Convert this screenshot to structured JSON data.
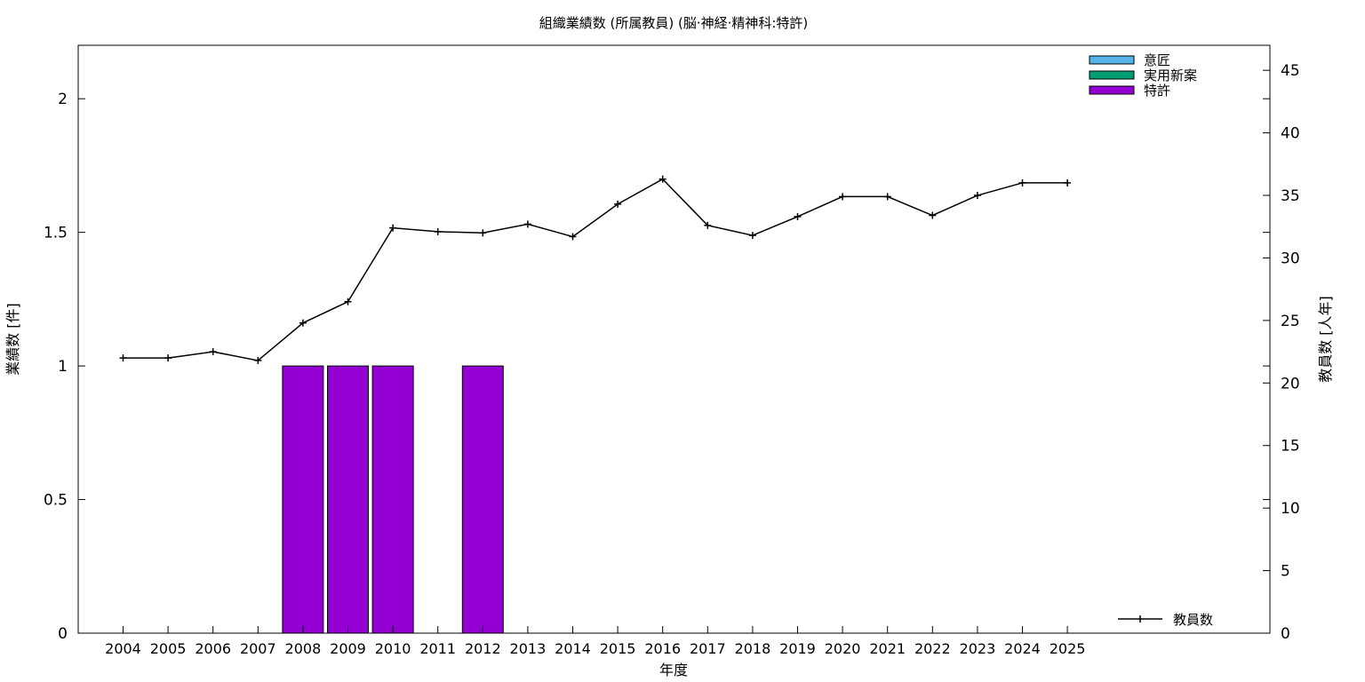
{
  "chart_data": {
    "type": "bar",
    "title": "組織業績数 (所属教員) (脳·神経·精神科:特許)",
    "xlabel": "年度",
    "ylabel": "業績数 [件]",
    "y2label": "教員数 [人年]",
    "categories": [
      "2004",
      "2005",
      "2006",
      "2007",
      "2008",
      "2009",
      "2010",
      "2011",
      "2012",
      "2013",
      "2014",
      "2015",
      "2016",
      "2017",
      "2018",
      "2019",
      "2020",
      "2021",
      "2022",
      "2023",
      "2024",
      "2025"
    ],
    "ylim": [
      0,
      2.2
    ],
    "y2lim": [
      0,
      47
    ],
    "yticks": [
      "0",
      "0.5",
      "1",
      "1.5",
      "2"
    ],
    "y2ticks": [
      "0",
      "5",
      "10",
      "15",
      "20",
      "25",
      "30",
      "35",
      "40",
      "45"
    ],
    "grid": false,
    "legend_position": "top-right",
    "bar_series": [
      {
        "name": "意匠",
        "color": "#56b4e9",
        "values": [
          0,
          0,
          0,
          0,
          0,
          0,
          0,
          0,
          0,
          0,
          0,
          0,
          0,
          0,
          0,
          0,
          0,
          0,
          0,
          0,
          0,
          0
        ]
      },
      {
        "name": "実用新案",
        "color": "#009e73",
        "values": [
          0,
          0,
          0,
          0,
          0,
          0,
          0,
          0,
          0,
          0,
          0,
          0,
          0,
          0,
          0,
          0,
          0,
          0,
          0,
          0,
          0,
          0
        ]
      },
      {
        "name": "特許",
        "color": "#9400d3",
        "values": [
          0,
          0,
          0,
          0,
          1,
          1,
          1,
          0,
          1,
          0,
          0,
          0,
          0,
          0,
          0,
          0,
          0,
          0,
          0,
          0,
          0,
          0
        ]
      }
    ],
    "line_series": {
      "name": "教員数",
      "color": "#000000",
      "axis": "right",
      "values": [
        22.0,
        22.0,
        22.5,
        21.8,
        24.8,
        26.5,
        32.4,
        32.1,
        32.0,
        32.7,
        31.7,
        34.3,
        36.3,
        32.6,
        31.8,
        33.3,
        34.9,
        34.9,
        33.4,
        35.0,
        36.0,
        36.0
      ]
    }
  }
}
